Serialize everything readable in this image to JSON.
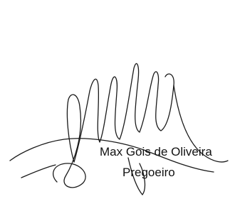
{
  "signature": {
    "name": "Max Gois de Oliveira",
    "role": "Pregoeiro"
  }
}
